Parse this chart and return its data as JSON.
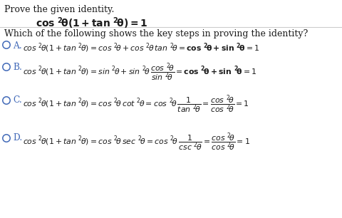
{
  "bg_color": "#ffffff",
  "blue": "#4169b8",
  "black": "#1a1a1a",
  "gray_line": "#cccccc",
  "figsize": [
    4.81,
    3.06
  ],
  "dpi": 100,
  "title": "Prove the given identity.",
  "question": "Which of the following shows the key steps in proving the identity?",
  "identity": "cos ^{2}\\theta(1 + tan ^{2}\\theta) = 1",
  "optA_label": "A.",
  "optB_label": "B.",
  "optC_label": "C.",
  "optD_label": "D.",
  "optA": "cos ^{2}\\theta(1 + tan ^{2}\\theta) = cos ^{2}\\theta + cos ^{2}\\theta\\,tan ^{2}\\theta = \\mathbf{cos ^{2}\\theta + sin ^{2}\\theta} = 1",
  "optB": "cos ^{2}\\theta(1 + tan ^{2}\\theta) = sin ^{2}\\theta + sin ^{2}\\theta\\,\\dfrac{cos ^{2}\\theta}{sin ^{2}\\theta} = \\mathbf{cos ^{2}\\theta + sin ^{2}\\theta} = 1",
  "optC": "cos ^{2}\\theta(1 + tan ^{2}\\theta) = cos ^{2}\\theta\\,cot ^{2}\\theta = cos ^{2}\\theta\\,\\dfrac{1}{tan ^{2}\\theta} = \\dfrac{cos ^{2}\\theta}{cos ^{2}\\theta} = 1",
  "optD": "cos ^{2}\\theta(1 + tan ^{2}\\theta) = cos ^{2}\\theta\\,sec ^{2}\\theta = cos ^{2}\\theta\\,\\dfrac{1}{csc ^{2}\\theta} = \\dfrac{cos ^{2}\\theta}{cos ^{2}\\theta} = 1"
}
